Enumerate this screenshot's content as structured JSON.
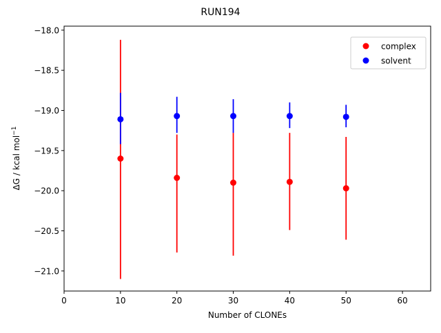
{
  "chart_data": {
    "type": "scatter",
    "title": "RUN194",
    "xlabel": "Number of CLONEs",
    "ylabel_main": "ΔG / kcal mol",
    "ylabel_sup": "−1",
    "xlim": [
      0,
      65
    ],
    "ylim": [
      -21.25,
      -17.95
    ],
    "x_ticks": [
      0,
      10,
      20,
      30,
      40,
      50,
      60
    ],
    "y_ticks": [
      -18.0,
      -18.5,
      -19.0,
      -19.5,
      -20.0,
      -20.5,
      -21.0
    ],
    "x_tick_labels": [
      "0",
      "10",
      "20",
      "30",
      "40",
      "50",
      "60"
    ],
    "y_tick_labels": [
      "−18.0",
      "−18.5",
      "−19.0",
      "−19.5",
      "−20.0",
      "−20.5",
      "−21.0"
    ],
    "grid": false,
    "legend_position": "top-right",
    "series": [
      {
        "name": "complex",
        "color": "#ff0000",
        "points": [
          {
            "x": 10,
            "y": -19.6,
            "err_low": -21.1,
            "err_high": -18.12
          },
          {
            "x": 20,
            "y": -19.84,
            "err_low": -20.77,
            "err_high": -19.3
          },
          {
            "x": 30,
            "y": -19.9,
            "err_low": -20.81,
            "err_high": -19.28
          },
          {
            "x": 40,
            "y": -19.89,
            "err_low": -20.49,
            "err_high": -19.28
          },
          {
            "x": 50,
            "y": -19.97,
            "err_low": -20.61,
            "err_high": -19.33
          }
        ]
      },
      {
        "name": "solvent",
        "color": "#0000ff",
        "points": [
          {
            "x": 10,
            "y": -19.11,
            "err_low": -19.42,
            "err_high": -18.78
          },
          {
            "x": 20,
            "y": -19.07,
            "err_low": -19.28,
            "err_high": -18.83
          },
          {
            "x": 30,
            "y": -19.07,
            "err_low": -19.28,
            "err_high": -18.86
          },
          {
            "x": 40,
            "y": -19.07,
            "err_low": -19.22,
            "err_high": -18.9
          },
          {
            "x": 50,
            "y": -19.08,
            "err_low": -19.21,
            "err_high": -18.93
          }
        ]
      }
    ]
  }
}
